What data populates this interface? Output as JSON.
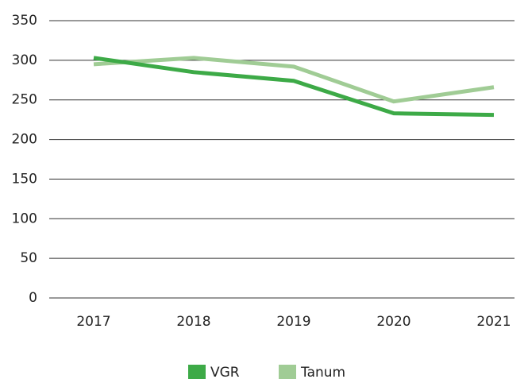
{
  "chart_data": {
    "type": "line",
    "categories": [
      "2017",
      "2018",
      "2019",
      "2020",
      "2021"
    ],
    "series": [
      {
        "name": "VGR",
        "color": "#3daa47",
        "values": [
          303,
          285,
          274,
          233,
          231
        ]
      },
      {
        "name": "Tanum",
        "color": "#a0cc95",
        "values": [
          295,
          303,
          292,
          248,
          266
        ]
      }
    ],
    "ylim": [
      0,
      350
    ],
    "yticks": [
      0,
      50,
      100,
      150,
      200,
      250,
      300,
      350
    ],
    "grid": true,
    "legend": "bottom"
  }
}
